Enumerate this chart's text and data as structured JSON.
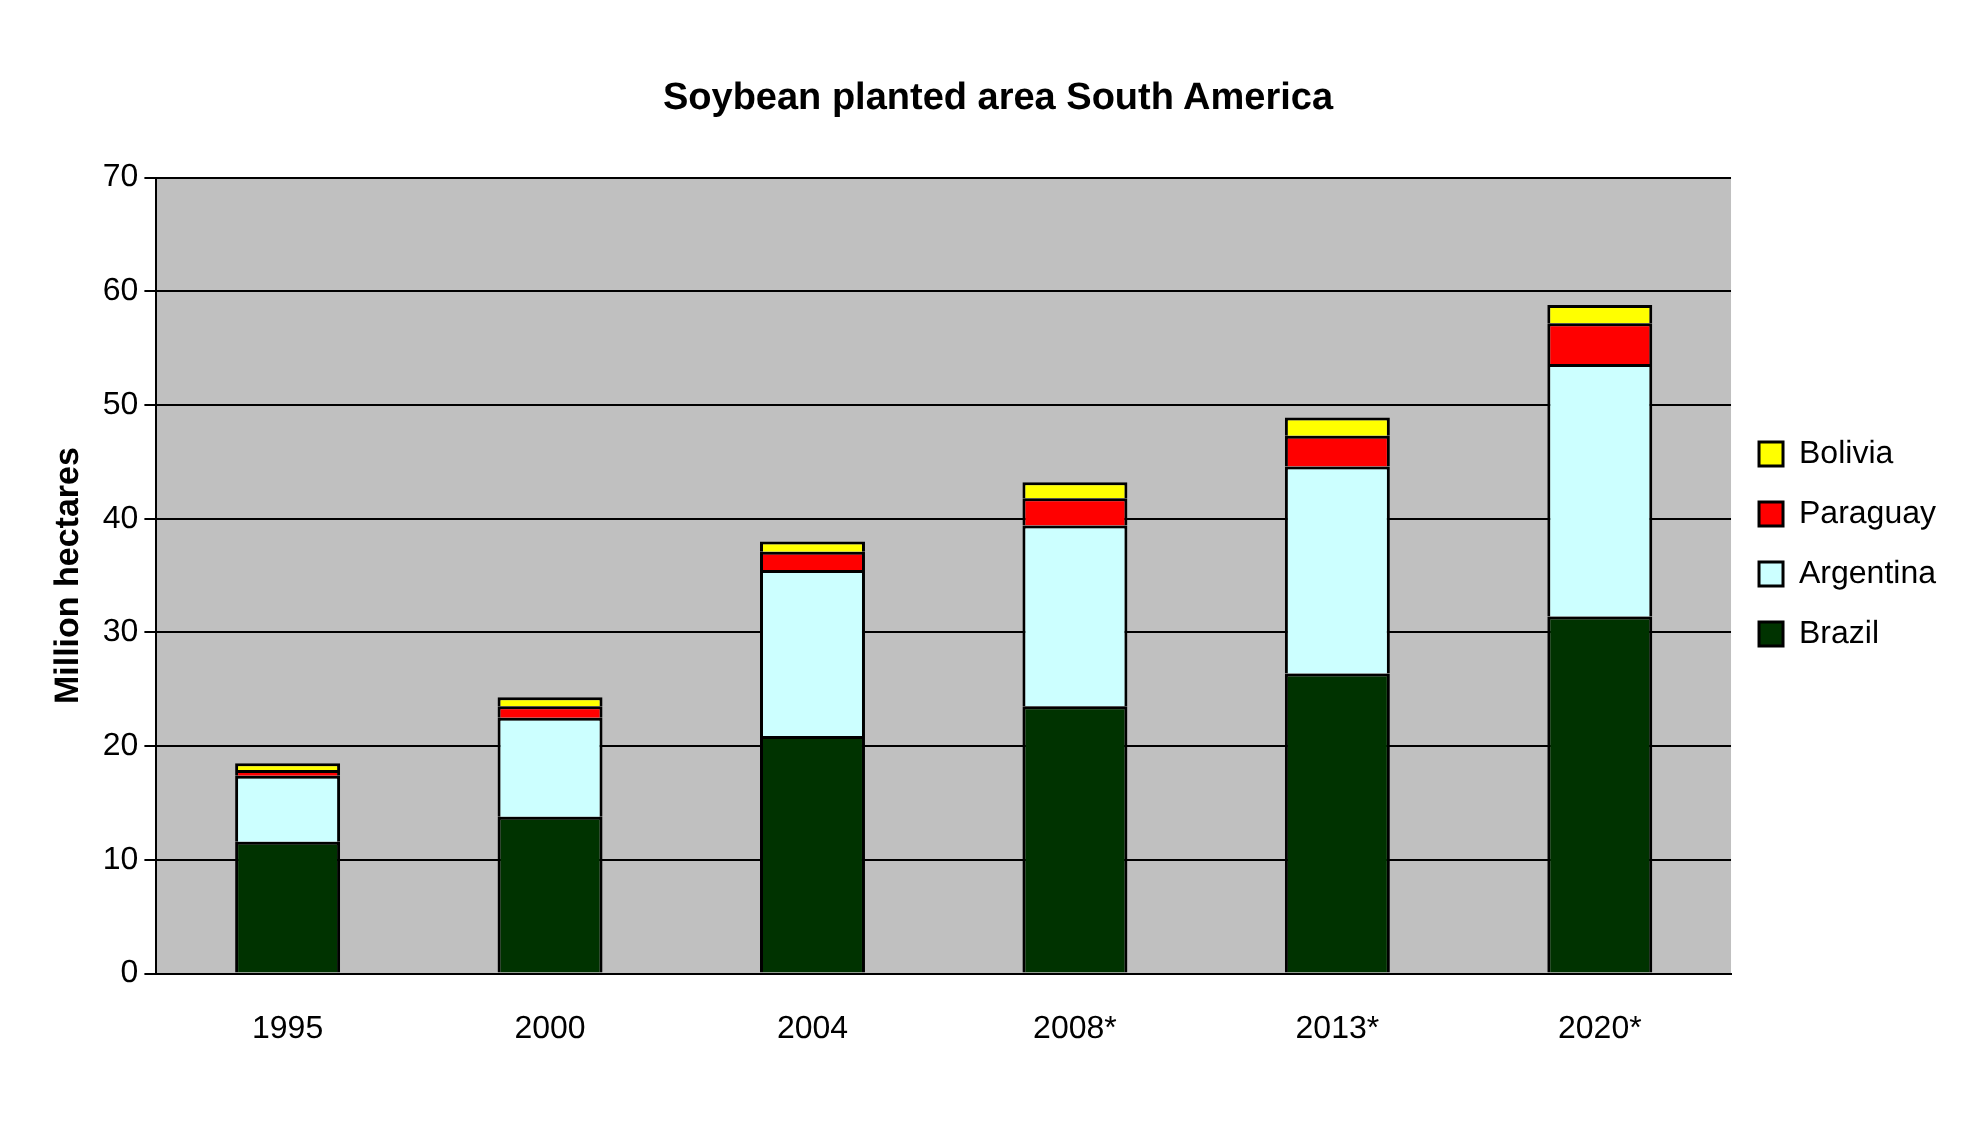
{
  "chart_data": {
    "type": "bar",
    "title": "Soybean planted area South America",
    "ylabel": "Million hectares",
    "categories": [
      "1995",
      "2000",
      "2004",
      "2008*",
      "2013*",
      "2020*"
    ],
    "stacked": true,
    "series": [
      {
        "name": "Brazil",
        "color": "#003300",
        "values": [
          11.6,
          13.8,
          20.9,
          23.5,
          26.4,
          31.4
        ]
      },
      {
        "name": "Argentina",
        "color": "#ccffff",
        "values": [
          5.8,
          8.7,
          14.6,
          15.9,
          18.2,
          22.2
        ]
      },
      {
        "name": "Paraguay",
        "color": "#ff0000",
        "values": [
          0.5,
          1.0,
          1.6,
          2.4,
          2.7,
          3.6
        ]
      },
      {
        "name": "Bolivia",
        "color": "#ffff00",
        "values": [
          0.6,
          0.8,
          0.9,
          1.4,
          1.6,
          1.6
        ]
      }
    ],
    "ylim": [
      0,
      70
    ],
    "yticks": [
      0,
      10,
      20,
      30,
      40,
      50,
      60,
      70
    ],
    "grid": "y",
    "legend": "right"
  }
}
